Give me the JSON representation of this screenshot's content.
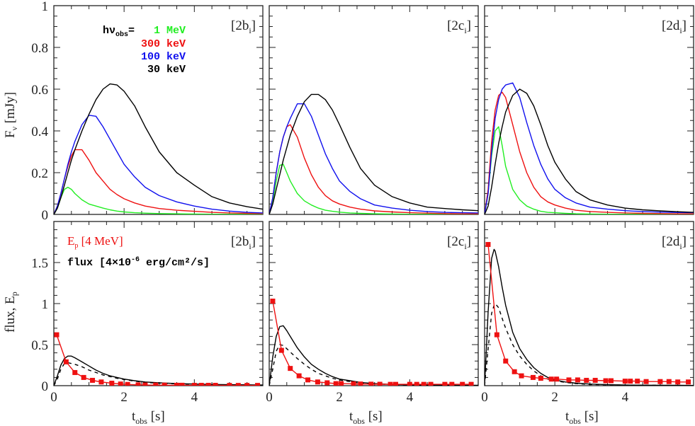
{
  "colors": {
    "green": "#22ee22",
    "red": "#ee1111",
    "blue": "#1111ee",
    "black": "#000000"
  },
  "legend_top": {
    "prefix": "hν",
    "prefix_sub": "obs",
    "equals": "=",
    "entries": [
      {
        "label": "1 MeV",
        "color": "#22ee22"
      },
      {
        "label": "300 keV",
        "color": "#ee1111"
      },
      {
        "label": "100 keV",
        "color": "#1111ee"
      },
      {
        "label": "30 keV",
        "color": "#000000"
      }
    ]
  },
  "legend_bottom": {
    "ep_label": "E",
    "ep_sub": "p",
    "ep_unit": " [4 MeV]",
    "flux_label": "flux [4×10",
    "flux_exp": "-6",
    "flux_unit": " erg/cm²/s]"
  },
  "axes": {
    "top_ylabel": "F",
    "top_ylabel_sub": "ν",
    "top_ylabel_unit": " [mJy]",
    "bottom_ylabel": "flux, E",
    "bottom_ylabel_sub": "p",
    "xlabel": "t",
    "xlabel_sub": "obs",
    "xlabel_unit": " [s]"
  },
  "chart_data": [
    {
      "type": "line",
      "row": "top",
      "panel_label": {
        "pre": "[2b",
        "sub": "i",
        "post": "]"
      },
      "xlim": [
        0,
        5.95
      ],
      "ylim": [
        0,
        1
      ],
      "xticks": [
        "0",
        "2",
        "4"
      ],
      "yticks": [
        "0",
        "0.2",
        "0.4",
        "0.6",
        "0.8",
        "1"
      ],
      "x": [
        0,
        0.1,
        0.2,
        0.3,
        0.4,
        0.5,
        0.6,
        0.8,
        1.0,
        1.2,
        1.4,
        1.6,
        1.8,
        2.0,
        2.3,
        2.6,
        3.0,
        3.5,
        4.0,
        4.5,
        5.0,
        5.5,
        5.95
      ],
      "series": [
        {
          "name": "1 MeV",
          "color": "#22ee22",
          "values": [
            0,
            0.03,
            0.08,
            0.12,
            0.13,
            0.12,
            0.1,
            0.07,
            0.05,
            0.04,
            0.03,
            0.022,
            0.016,
            0.012,
            0.008,
            0.006,
            0.004,
            0.003,
            0.002,
            0.001,
            0.001,
            0.001,
            0
          ]
        },
        {
          "name": "300 keV",
          "color": "#ee1111",
          "values": [
            0,
            0.04,
            0.1,
            0.17,
            0.23,
            0.28,
            0.31,
            0.31,
            0.26,
            0.2,
            0.16,
            0.12,
            0.095,
            0.075,
            0.055,
            0.04,
            0.028,
            0.02,
            0.015,
            0.01,
            0.007,
            0.005,
            0.004
          ]
        },
        {
          "name": "100 keV",
          "color": "#1111ee",
          "values": [
            0,
            0.04,
            0.1,
            0.17,
            0.24,
            0.3,
            0.35,
            0.43,
            0.475,
            0.47,
            0.42,
            0.36,
            0.3,
            0.24,
            0.18,
            0.13,
            0.09,
            0.06,
            0.04,
            0.025,
            0.016,
            0.01,
            0.007
          ]
        },
        {
          "name": "30 keV",
          "color": "#000000",
          "values": [
            0,
            0.03,
            0.08,
            0.14,
            0.2,
            0.26,
            0.31,
            0.4,
            0.48,
            0.55,
            0.6,
            0.625,
            0.62,
            0.59,
            0.52,
            0.42,
            0.3,
            0.2,
            0.14,
            0.085,
            0.055,
            0.037,
            0.025
          ]
        }
      ]
    },
    {
      "type": "line",
      "row": "top",
      "panel_label": {
        "pre": "[2c",
        "sub": "i",
        "post": "]"
      },
      "xlim": [
        0,
        5.95
      ],
      "ylim": [
        0,
        1
      ],
      "xticks": [
        "0",
        "2",
        "4"
      ],
      "x": [
        0,
        0.1,
        0.2,
        0.3,
        0.4,
        0.5,
        0.6,
        0.8,
        1.0,
        1.2,
        1.4,
        1.6,
        1.8,
        2.0,
        2.3,
        2.6,
        3.0,
        3.5,
        4.0,
        4.5,
        5.0,
        5.5,
        5.95
      ],
      "series": [
        {
          "name": "1 MeV",
          "color": "#22ee22",
          "values": [
            0,
            0.06,
            0.16,
            0.235,
            0.24,
            0.2,
            0.16,
            0.1,
            0.065,
            0.045,
            0.03,
            0.02,
            0.015,
            0.011,
            0.007,
            0.005,
            0.003,
            0.002,
            0.001,
            0.001,
            0.001,
            0.001,
            0.001
          ]
        },
        {
          "name": "300 keV",
          "color": "#ee1111",
          "values": [
            0,
            0.08,
            0.2,
            0.3,
            0.37,
            0.42,
            0.43,
            0.37,
            0.27,
            0.19,
            0.13,
            0.09,
            0.065,
            0.05,
            0.035,
            0.025,
            0.017,
            0.012,
            0.008,
            0.006,
            0.004,
            0.003,
            0.003
          ]
        },
        {
          "name": "100 keV",
          "color": "#1111ee",
          "values": [
            0,
            0.08,
            0.2,
            0.3,
            0.37,
            0.42,
            0.46,
            0.53,
            0.53,
            0.47,
            0.38,
            0.29,
            0.22,
            0.16,
            0.11,
            0.075,
            0.045,
            0.03,
            0.02,
            0.014,
            0.01,
            0.008,
            0.007
          ]
        },
        {
          "name": "30 keV",
          "color": "#000000",
          "values": [
            0,
            0.05,
            0.12,
            0.19,
            0.26,
            0.32,
            0.38,
            0.47,
            0.54,
            0.575,
            0.575,
            0.55,
            0.5,
            0.43,
            0.32,
            0.22,
            0.14,
            0.085,
            0.055,
            0.035,
            0.028,
            0.022,
            0.018
          ]
        }
      ]
    },
    {
      "type": "line",
      "row": "top",
      "panel_label": {
        "pre": "[2d",
        "sub": "i",
        "post": "]"
      },
      "xlim": [
        0,
        5.95
      ],
      "ylim": [
        0,
        1
      ],
      "xticks": [
        "0",
        "2",
        "4"
      ],
      "x": [
        0,
        0.1,
        0.2,
        0.3,
        0.4,
        0.5,
        0.6,
        0.8,
        1.0,
        1.2,
        1.4,
        1.6,
        1.8,
        2.0,
        2.3,
        2.6,
        3.0,
        3.5,
        4.0,
        4.5,
        5.0,
        5.5,
        5.95
      ],
      "series": [
        {
          "name": "1 MeV",
          "color": "#22ee22",
          "values": [
            0,
            0.1,
            0.28,
            0.4,
            0.42,
            0.33,
            0.23,
            0.12,
            0.07,
            0.04,
            0.025,
            0.015,
            0.01,
            0.008,
            0.005,
            0.003,
            0.002,
            0.001,
            0.001,
            0.001,
            0.001,
            0.001,
            0.001
          ]
        },
        {
          "name": "300 keV",
          "color": "#ee1111",
          "values": [
            0,
            0.12,
            0.35,
            0.5,
            0.57,
            0.585,
            0.56,
            0.43,
            0.3,
            0.2,
            0.13,
            0.085,
            0.06,
            0.045,
            0.03,
            0.02,
            0.014,
            0.01,
            0.007,
            0.005,
            0.004,
            0.003,
            0.003
          ]
        },
        {
          "name": "100 keV",
          "color": "#1111ee",
          "values": [
            0,
            0.1,
            0.3,
            0.46,
            0.55,
            0.6,
            0.62,
            0.63,
            0.56,
            0.44,
            0.33,
            0.24,
            0.17,
            0.12,
            0.08,
            0.055,
            0.035,
            0.025,
            0.018,
            0.014,
            0.011,
            0.009,
            0.008
          ]
        },
        {
          "name": "30 keV",
          "color": "#000000",
          "values": [
            0,
            0.04,
            0.13,
            0.24,
            0.34,
            0.42,
            0.49,
            0.57,
            0.6,
            0.58,
            0.52,
            0.43,
            0.33,
            0.25,
            0.17,
            0.11,
            0.07,
            0.045,
            0.03,
            0.022,
            0.017,
            0.013,
            0.01
          ]
        }
      ]
    },
    {
      "type": "line",
      "row": "bottom",
      "panel_label": {
        "pre": "[2b",
        "sub": "i",
        "post": "]"
      },
      "xlim": [
        0,
        5.95
      ],
      "ylim": [
        0,
        2
      ],
      "xticks": [
        "0",
        "2",
        "4"
      ],
      "yticks": [
        "0",
        "0.5",
        "1",
        "1.5"
      ],
      "x": [
        0,
        0.1,
        0.2,
        0.3,
        0.4,
        0.5,
        0.6,
        0.8,
        1.0,
        1.2,
        1.4,
        1.6,
        1.8,
        2.0,
        2.3,
        2.6,
        3.0,
        3.5,
        4.0,
        4.5,
        5.0,
        5.5,
        5.95
      ],
      "flux_solid": [
        0,
        0.12,
        0.25,
        0.33,
        0.36,
        0.36,
        0.34,
        0.29,
        0.24,
        0.19,
        0.15,
        0.12,
        0.1,
        0.08,
        0.06,
        0.045,
        0.035,
        0.025,
        0.02,
        0.015,
        0.012,
        0.01,
        0.008
      ],
      "flux_dashed": [
        0,
        0.08,
        0.2,
        0.27,
        0.28,
        0.27,
        0.26,
        0.23,
        0.19,
        0.16,
        0.13,
        0.11,
        0.09,
        0.075,
        0.055,
        0.04,
        0.03,
        0.022,
        0.016,
        0.012,
        0.01,
        0.008,
        0.006
      ],
      "ep_points": [
        [
          0.08,
          0.62
        ],
        [
          0.35,
          0.29
        ],
        [
          0.6,
          0.16
        ],
        [
          0.85,
          0.1
        ],
        [
          1.1,
          0.065
        ],
        [
          1.35,
          0.045
        ],
        [
          1.65,
          0.03
        ],
        [
          1.9,
          0.02
        ],
        [
          2.1,
          0.015
        ],
        [
          2.4,
          0.01
        ],
        [
          2.6,
          0.008
        ],
        [
          2.9,
          0.007
        ],
        [
          3.15,
          0.006
        ],
        [
          3.5,
          0.005
        ],
        [
          3.65,
          0.005
        ],
        [
          4.0,
          0.004
        ],
        [
          4.2,
          0.004
        ],
        [
          4.4,
          0.004
        ],
        [
          4.6,
          0.004
        ],
        [
          5.0,
          0.003
        ],
        [
          5.25,
          0.003
        ],
        [
          5.5,
          0.003
        ],
        [
          5.8,
          0.003
        ]
      ]
    },
    {
      "type": "line",
      "row": "bottom",
      "panel_label": {
        "pre": "[2c",
        "sub": "i",
        "post": "]"
      },
      "xlim": [
        0,
        5.95
      ],
      "ylim": [
        0,
        2
      ],
      "xticks": [
        "0",
        "2",
        "4"
      ],
      "x": [
        0,
        0.1,
        0.2,
        0.3,
        0.4,
        0.5,
        0.6,
        0.8,
        1.0,
        1.2,
        1.4,
        1.6,
        1.8,
        2.0,
        2.3,
        2.6,
        3.0,
        3.5,
        4.0,
        4.5,
        5.0,
        5.5,
        5.95
      ],
      "flux_solid": [
        0,
        0.35,
        0.6,
        0.72,
        0.73,
        0.67,
        0.6,
        0.46,
        0.35,
        0.26,
        0.2,
        0.15,
        0.11,
        0.08,
        0.06,
        0.04,
        0.025,
        0.015,
        0.01,
        0.008,
        0.006,
        0.005,
        0.004
      ],
      "flux_dashed": [
        0,
        0.2,
        0.42,
        0.5,
        0.49,
        0.45,
        0.41,
        0.33,
        0.26,
        0.2,
        0.15,
        0.12,
        0.09,
        0.07,
        0.05,
        0.035,
        0.022,
        0.014,
        0.009,
        0.006,
        0.005,
        0.004,
        0.003
      ],
      "ep_points": [
        [
          0.1,
          1.03
        ],
        [
          0.35,
          0.43
        ],
        [
          0.6,
          0.21
        ],
        [
          0.85,
          0.12
        ],
        [
          1.1,
          0.07
        ],
        [
          1.38,
          0.045
        ],
        [
          1.65,
          0.035
        ],
        [
          1.9,
          0.025
        ],
        [
          2.05,
          0.025
        ],
        [
          2.4,
          0.022
        ],
        [
          2.6,
          0.02
        ],
        [
          2.9,
          0.018
        ],
        [
          3.15,
          0.017
        ],
        [
          3.45,
          0.016
        ],
        [
          3.6,
          0.016
        ],
        [
          4.0,
          0.016
        ],
        [
          4.2,
          0.016
        ],
        [
          4.4,
          0.016
        ],
        [
          4.6,
          0.016
        ],
        [
          5.0,
          0.016
        ],
        [
          5.2,
          0.016
        ],
        [
          5.5,
          0.016
        ],
        [
          5.75,
          0.016
        ]
      ]
    },
    {
      "type": "line",
      "row": "bottom",
      "panel_label": {
        "pre": "[2d",
        "sub": "i",
        "post": "]"
      },
      "xlim": [
        0,
        5.95
      ],
      "ylim": [
        0,
        2
      ],
      "xticks": [
        "0",
        "2",
        "4"
      ],
      "x": [
        0,
        0.1,
        0.2,
        0.27,
        0.3,
        0.4,
        0.5,
        0.6,
        0.8,
        1.0,
        1.2,
        1.4,
        1.6,
        1.8,
        2.0,
        2.3,
        2.6,
        3.0,
        3.5,
        4.0,
        4.5,
        5.0,
        5.5,
        5.95
      ],
      "flux_solid": [
        0,
        0.9,
        1.55,
        1.66,
        1.64,
        1.45,
        1.2,
        0.98,
        0.65,
        0.45,
        0.32,
        0.22,
        0.15,
        0.1,
        0.07,
        0.045,
        0.03,
        0.02,
        0.012,
        0.008,
        0.006,
        0.005,
        0.004,
        0.003
      ],
      "flux_dashed": [
        0,
        0.45,
        0.88,
        0.98,
        1.0,
        0.95,
        0.82,
        0.7,
        0.5,
        0.36,
        0.26,
        0.18,
        0.12,
        0.08,
        0.06,
        0.04,
        0.025,
        0.015,
        0.01,
        0.007,
        0.005,
        0.004,
        0.003,
        0.002
      ],
      "ep_points": [
        [
          0.1,
          1.72
        ],
        [
          0.35,
          0.62
        ],
        [
          0.6,
          0.3
        ],
        [
          0.85,
          0.17
        ],
        [
          1.05,
          0.12
        ],
        [
          1.38,
          0.1
        ],
        [
          1.6,
          0.09
        ],
        [
          1.9,
          0.08
        ],
        [
          2.05,
          0.08
        ],
        [
          2.4,
          0.07
        ],
        [
          2.65,
          0.07
        ],
        [
          2.9,
          0.065
        ],
        [
          3.15,
          0.065
        ],
        [
          3.45,
          0.06
        ],
        [
          3.6,
          0.06
        ],
        [
          4.0,
          0.055
        ],
        [
          4.15,
          0.055
        ],
        [
          4.35,
          0.055
        ],
        [
          4.6,
          0.05
        ],
        [
          5.0,
          0.05
        ],
        [
          5.25,
          0.05
        ],
        [
          5.5,
          0.045
        ],
        [
          5.8,
          0.045
        ]
      ]
    }
  ]
}
